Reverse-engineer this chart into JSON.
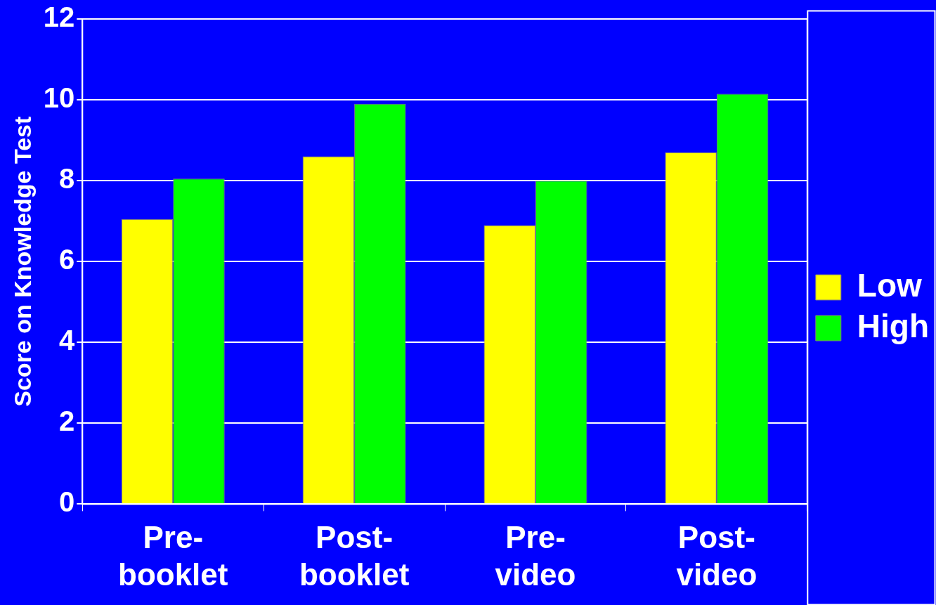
{
  "chart_data": {
    "type": "bar",
    "ylabel": "Score on Knowledge Test",
    "categories": [
      "Pre-booklet",
      "Post-booklet",
      "Pre-video",
      "Post-video"
    ],
    "series": [
      {
        "name": "Low",
        "color": "#ffff00",
        "values": [
          7.05,
          8.6,
          6.9,
          8.7
        ]
      },
      {
        "name": "High",
        "color": "#00ff00",
        "values": [
          8.05,
          9.9,
          8.0,
          10.15
        ]
      }
    ],
    "ylim": [
      0,
      12
    ],
    "yticks": [
      0,
      2,
      4,
      6,
      8,
      10,
      12
    ],
    "grid": "y",
    "legend": "right"
  }
}
